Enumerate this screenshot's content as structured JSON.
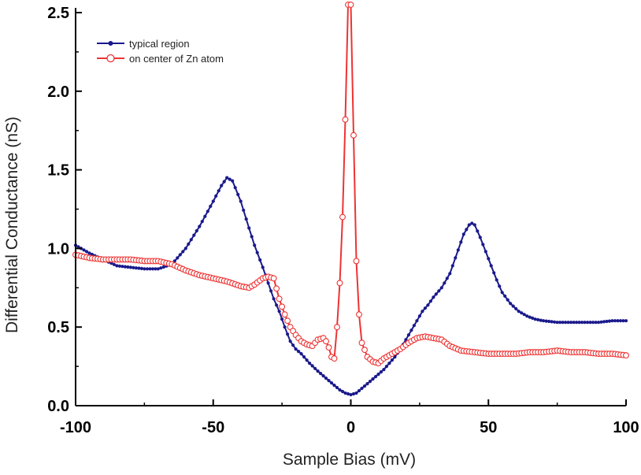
{
  "chart_data": {
    "type": "line",
    "title": "",
    "xlabel": "Sample Bias (mV)",
    "ylabel": "Differential Conductance (nS)",
    "xlim": [
      -100,
      100
    ],
    "ylim": [
      0,
      2.5
    ],
    "xticks": [
      -100,
      -50,
      0,
      50,
      100
    ],
    "xtick_labels": [
      "-100",
      "-50",
      "0",
      "50",
      "100"
    ],
    "yticks": [
      0,
      0.5,
      1.0,
      1.5,
      2.0,
      2.5
    ],
    "ytick_labels": [
      "0.0",
      "0.5",
      "1.0",
      "1.5",
      "2.0",
      "2.5"
    ],
    "grid": false,
    "legend_position": "top-left",
    "series": [
      {
        "name": "typical region",
        "color": "#1a1a8c",
        "marker": "filled-dot",
        "x": [
          -100,
          -95,
          -90,
          -85,
          -80,
          -75,
          -70,
          -65,
          -60,
          -55,
          -50,
          -47,
          -45,
          -43,
          -40,
          -37,
          -35,
          -32,
          -30,
          -28,
          -26,
          -24,
          -22,
          -20,
          -18,
          -15,
          -12,
          -10,
          -8,
          -6,
          -4,
          -2,
          0,
          2,
          4,
          6,
          8,
          10,
          12,
          14,
          16,
          18,
          20,
          22,
          24,
          26,
          28,
          30,
          33,
          36,
          39,
          41,
          43,
          44,
          45,
          47,
          49,
          51,
          53,
          55,
          58,
          61,
          64,
          67,
          70,
          75,
          80,
          85,
          90,
          95,
          100
        ],
        "y": [
          1.02,
          0.97,
          0.93,
          0.89,
          0.88,
          0.87,
          0.87,
          0.9,
          1.0,
          1.14,
          1.3,
          1.4,
          1.45,
          1.43,
          1.3,
          1.13,
          1.02,
          0.88,
          0.78,
          0.68,
          0.6,
          0.5,
          0.41,
          0.36,
          0.33,
          0.27,
          0.22,
          0.19,
          0.16,
          0.13,
          0.1,
          0.08,
          0.07,
          0.08,
          0.11,
          0.14,
          0.17,
          0.2,
          0.23,
          0.27,
          0.31,
          0.36,
          0.42,
          0.48,
          0.54,
          0.6,
          0.64,
          0.69,
          0.75,
          0.84,
          0.99,
          1.09,
          1.15,
          1.16,
          1.15,
          1.07,
          0.98,
          0.89,
          0.8,
          0.72,
          0.65,
          0.6,
          0.57,
          0.55,
          0.54,
          0.53,
          0.53,
          0.53,
          0.53,
          0.54,
          0.54
        ]
      },
      {
        "name": "on center of Zn atom",
        "color": "#ee3333",
        "marker": "open-circle",
        "x": [
          -100,
          -95,
          -90,
          -85,
          -80,
          -75,
          -70,
          -65,
          -60,
          -55,
          -50,
          -45,
          -40,
          -37,
          -35,
          -32,
          -30,
          -28,
          -26,
          -24,
          -22,
          -20,
          -18,
          -16,
          -14,
          -12,
          -10,
          -9,
          -8,
          -7,
          -6,
          -5,
          -4,
          -3,
          -2,
          -1,
          0,
          1,
          2,
          3,
          4,
          6,
          8,
          10,
          12,
          15,
          18,
          21,
          24,
          27,
          30,
          33,
          36,
          40,
          45,
          50,
          55,
          60,
          65,
          70,
          75,
          80,
          85,
          90,
          95,
          100
        ],
        "y": [
          0.96,
          0.94,
          0.93,
          0.93,
          0.93,
          0.92,
          0.92,
          0.9,
          0.86,
          0.83,
          0.81,
          0.79,
          0.76,
          0.75,
          0.77,
          0.81,
          0.82,
          0.81,
          0.68,
          0.58,
          0.5,
          0.45,
          0.41,
          0.39,
          0.38,
          0.42,
          0.43,
          0.41,
          0.37,
          0.31,
          0.3,
          0.5,
          0.78,
          1.2,
          1.82,
          2.55,
          2.55,
          1.72,
          0.92,
          0.58,
          0.4,
          0.31,
          0.28,
          0.27,
          0.3,
          0.33,
          0.36,
          0.4,
          0.43,
          0.44,
          0.43,
          0.42,
          0.38,
          0.35,
          0.34,
          0.33,
          0.33,
          0.33,
          0.34,
          0.34,
          0.35,
          0.34,
          0.34,
          0.33,
          0.33,
          0.32
        ]
      }
    ]
  }
}
